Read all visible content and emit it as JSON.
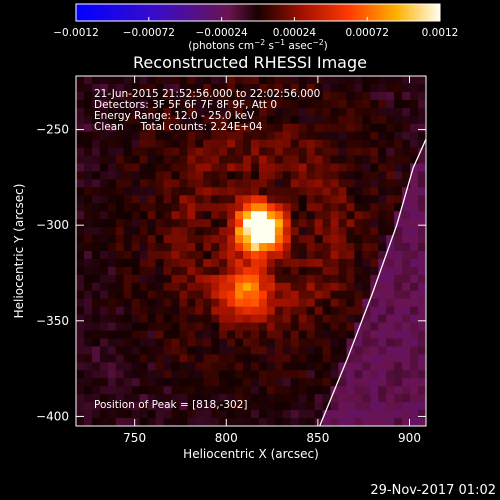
{
  "chart_data": {
    "type": "heatmap",
    "title": "Reconstructed RHESSI Image",
    "xlabel": "Heliocentric X (arcsec)",
    "ylabel": "Heliocentric Y (arcsec)",
    "xlim": [
      718,
      909
    ],
    "ylim": [
      -405,
      -222
    ],
    "x_ticks": [
      750,
      800,
      850,
      900
    ],
    "x_tick_labels": [
      "750",
      "800",
      "850",
      "900"
    ],
    "y_ticks": [
      -250,
      -300,
      -350,
      -400
    ],
    "y_tick_labels": [
      "−250",
      "−300",
      "−350",
      "−400"
    ],
    "colorbar": {
      "range": [
        -0.0012,
        0.0012
      ],
      "ticks": [
        -0.0012,
        -0.00072,
        -0.00024,
        0.00024,
        0.00072,
        0.0012
      ],
      "tick_labels": [
        "−0.0012",
        "−0.00072",
        "−0.00024",
        "0.00024",
        "0.00072",
        "0.0012"
      ],
      "unit_prefix": "(photons cm",
      "unit_exp1": "−2",
      "unit_mid": " s",
      "unit_exp2": "−1",
      "unit_mid2": " asec",
      "unit_exp3": "−2",
      "unit_suffix": ")"
    },
    "annotations": [
      "21-Jun-2015 21:52:56.000 to 22:02:56.000",
      "Detectors: 3F 5F 6F 7F 8F 9F, Att 0",
      "Energy Range: 12.0 - 25.0 keV",
      "Clean     Total counts: 2.24E+04"
    ],
    "peak_label": "Position of Peak = [818,-302]",
    "peak": [
      818,
      -302
    ],
    "secondary_source": [
      811,
      -333
    ],
    "limb_curve": [
      [
        851,
        -405
      ],
      [
        866,
        -370
      ],
      [
        880,
        -335
      ],
      [
        893,
        -300
      ],
      [
        902,
        -270
      ],
      [
        909,
        -255
      ]
    ],
    "date_stamp": "29-Nov-2017 01:02"
  }
}
